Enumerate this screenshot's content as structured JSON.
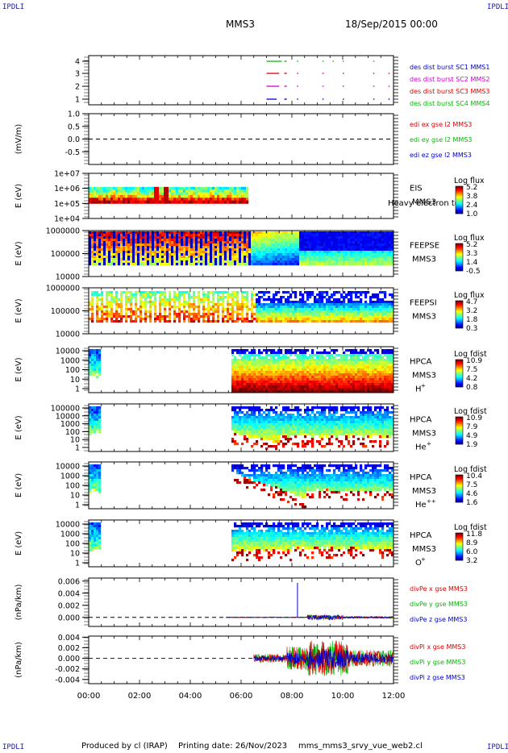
{
  "corners": {
    "tl": "IPDLI",
    "tr": "IPDLI",
    "bl": "IPDLI",
    "br": "IPDLI"
  },
  "header": {
    "spacecraft": "MMS3",
    "datetime": "18/Sep/2015 00:00"
  },
  "footer": {
    "produced": "Produced by cl (IRAP)",
    "printing": "Printing date: 26/Nov/2023",
    "file": "mms_mms3_srvy_vue_web2.cl"
  },
  "colors": {
    "blue": "#0000cc",
    "red": "#dd0000",
    "green": "#00bb00",
    "magenta": "#cc00cc"
  },
  "chart_data": [
    {
      "type": "line",
      "id": "burst",
      "ylim": [
        0.5,
        4.5
      ],
      "yticks": [
        "1",
        "2",
        "3",
        "4"
      ],
      "legend": [
        "des dist burst SC1 MMS1",
        "des dist burst SC2 MMS2",
        "des dist burst SC3 MMS3",
        "des dist burst SC4 MMS4"
      ],
      "legend_colors": [
        "#0000cc",
        "#cc00cc",
        "#dd0000",
        "#00bb00"
      ],
      "series": [
        {
          "y": 4,
          "color": "#00bb00",
          "segments": [
            [
              7.0,
              7.6
            ],
            [
              7.7,
              7.8
            ],
            [
              8.2,
              8.25
            ],
            [
              9.2,
              9.25
            ],
            [
              9.6,
              9.65
            ],
            [
              10.0,
              10.05
            ],
            [
              11.2,
              11.25
            ]
          ]
        },
        {
          "y": 3,
          "color": "#dd0000",
          "segments": [
            [
              7.0,
              7.5
            ],
            [
              7.7,
              7.8
            ],
            [
              8.2,
              8.25
            ],
            [
              9.2,
              9.25
            ],
            [
              10.0,
              10.05
            ],
            [
              11.2,
              11.25
            ],
            [
              11.8,
              11.85
            ]
          ]
        },
        {
          "y": 2,
          "color": "#cc00cc",
          "segments": [
            [
              7.0,
              7.5
            ],
            [
              7.7,
              7.8
            ],
            [
              8.2,
              8.25
            ],
            [
              9.2,
              9.25
            ],
            [
              10.0,
              10.05
            ],
            [
              11.2,
              11.25
            ],
            [
              11.8,
              11.85
            ]
          ]
        },
        {
          "y": 1,
          "color": "#0000cc",
          "segments": [
            [
              7.0,
              7.4
            ],
            [
              7.7,
              7.8
            ],
            [
              8.2,
              8.25
            ],
            [
              9.2,
              9.25
            ],
            [
              10.0,
              10.05
            ],
            [
              11.2,
              11.25
            ],
            [
              11.8,
              11.85
            ]
          ]
        }
      ]
    },
    {
      "type": "line",
      "id": "edi",
      "ylabel": "(mV/m)",
      "ylim": [
        -1.0,
        1.0
      ],
      "yticks": [
        "1.0",
        "0.5",
        "0.0",
        "-0.5"
      ],
      "legend": [
        "edi ex gse l2 MMS3",
        "edi ey gse l2 MMS3",
        "edi ez gse l2 MMS3"
      ],
      "legend_colors": [
        "#dd0000",
        "#00bb00",
        "#0000cc"
      ]
    },
    {
      "type": "heatmap",
      "id": "eis",
      "ylabel": "E (eV)",
      "yticks": [
        "1e+07",
        "1e+06",
        "1e+05",
        "1e+04"
      ],
      "xrange_data": [
        0.0,
        6.2
      ],
      "labels": [
        "EIS",
        "MMS3"
      ],
      "overlay": "Heavy electron to",
      "cbar": {
        "title": "Log flux",
        "ticks": [
          "5.2",
          "3.8",
          "2.4",
          "1.0"
        ]
      }
    },
    {
      "type": "heatmap",
      "id": "feepse",
      "ylabel": "E (eV)",
      "yticks": [
        "1000000",
        "100000",
        "10000"
      ],
      "xrange_data": [
        0.0,
        12.0
      ],
      "labels": [
        "FEEPSE",
        "MMS3"
      ],
      "cbar": {
        "title": "Log flux",
        "ticks": [
          "5.2",
          "3.3",
          "1.4",
          "-0.5"
        ]
      }
    },
    {
      "type": "heatmap",
      "id": "feepsi",
      "ylabel": "E (eV)",
      "yticks": [
        "1000000",
        "100000",
        "10000"
      ],
      "xrange_data": [
        0.0,
        12.0
      ],
      "labels": [
        "FEEPSI",
        "MMS3"
      ],
      "cbar": {
        "title": "Log flux",
        "ticks": [
          "4.7",
          "3.2",
          "1.8",
          "0.3"
        ]
      }
    },
    {
      "type": "heatmap",
      "id": "hpca_h",
      "ylabel": "E (eV)",
      "yticks": [
        "10000",
        "1000",
        "100",
        "10",
        "1"
      ],
      "labels": [
        "HPCA",
        "MMS3",
        "H"
      ],
      "species_sup": "+",
      "cbar": {
        "title": "Log fdist",
        "ticks": [
          "10.9",
          "7.5",
          "4.2",
          "0.8"
        ]
      }
    },
    {
      "type": "heatmap",
      "id": "hpca_he",
      "ylabel": "E (eV)",
      "yticks": [
        "100000",
        "10000",
        "1000",
        "100",
        "10",
        "1"
      ],
      "labels": [
        "HPCA",
        "MMS3",
        "He"
      ],
      "species_sup": "+",
      "cbar": {
        "title": "Log fdist",
        "ticks": [
          "10.9",
          "7.9",
          "4.9",
          "1.9"
        ]
      }
    },
    {
      "type": "heatmap",
      "id": "hpca_hepp",
      "ylabel": "E (eV)",
      "yticks": [
        "10000",
        "1000",
        "100",
        "10",
        "1"
      ],
      "labels": [
        "HPCA",
        "MMS3",
        "He"
      ],
      "species_sup": "++",
      "cbar": {
        "title": "Log fdist",
        "ticks": [
          "10.4",
          "7.5",
          "4.6",
          "1.6"
        ]
      }
    },
    {
      "type": "heatmap",
      "id": "hpca_o",
      "ylabel": "E (eV)",
      "yticks": [
        "10000",
        "1000",
        "100",
        "10",
        "1"
      ],
      "labels": [
        "HPCA",
        "MMS3",
        "O"
      ],
      "species_sup": "+",
      "cbar": {
        "title": "Log fdist",
        "ticks": [
          "11.8",
          "8.9",
          "6.0",
          "3.2"
        ]
      }
    },
    {
      "type": "line",
      "id": "divpe",
      "ylabel": "(nPa/km)",
      "ylim": [
        -0.0015,
        0.0065
      ],
      "yticks": [
        "0.006",
        "0.004",
        "0.002",
        "0.000"
      ],
      "legend": [
        "divPe x gse MMS3",
        "divPe y gse MMS3",
        "divPe z gse MMS3"
      ],
      "legend_colors": [
        "#dd0000",
        "#00bb00",
        "#0000cc"
      ]
    },
    {
      "type": "line",
      "id": "divpi",
      "ylabel": "(nPa/km)",
      "ylim": [
        -0.0048,
        0.0042
      ],
      "yticks": [
        "0.004",
        "0.002",
        "0.000",
        "-0.002",
        "-0.004"
      ],
      "legend": [
        "divPi x gse MMS3",
        "divPi y gse MMS3",
        "divPi z gse MMS3"
      ],
      "legend_colors": [
        "#dd0000",
        "#00bb00",
        "#0000cc"
      ]
    }
  ],
  "xaxis": {
    "ticks": [
      "00:00",
      "02:00",
      "04:00",
      "06:00",
      "08:00",
      "10:00",
      "12:00"
    ],
    "range_hours": [
      0,
      12
    ]
  }
}
